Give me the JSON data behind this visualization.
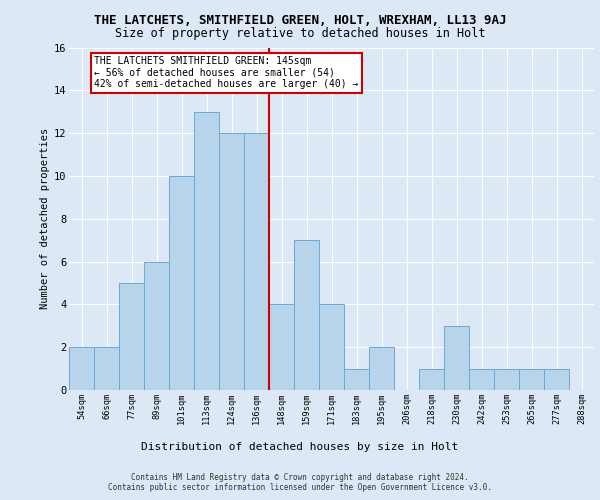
{
  "title": "THE LATCHETS, SMITHFIELD GREEN, HOLT, WREXHAM, LL13 9AJ",
  "subtitle": "Size of property relative to detached houses in Holt",
  "xlabel": "Distribution of detached houses by size in Holt",
  "ylabel": "Number of detached properties",
  "bin_labels": [
    "54sqm",
    "66sqm",
    "77sqm",
    "89sqm",
    "101sqm",
    "113sqm",
    "124sqm",
    "136sqm",
    "148sqm",
    "159sqm",
    "171sqm",
    "183sqm",
    "195sqm",
    "206sqm",
    "218sqm",
    "230sqm",
    "242sqm",
    "253sqm",
    "265sqm",
    "277sqm",
    "288sqm"
  ],
  "bar_values": [
    2,
    2,
    5,
    6,
    10,
    13,
    12,
    12,
    4,
    7,
    4,
    1,
    2,
    0,
    1,
    3,
    1,
    1,
    1,
    1,
    0
  ],
  "bar_color": "#b8d4ea",
  "bar_edge_color": "#6aaad4",
  "annotation_text": "THE LATCHETS SMITHFIELD GREEN: 145sqm\n← 56% of detached houses are smaller (54)\n42% of semi-detached houses are larger (40) →",
  "vline_position": 7.5,
  "vline_color": "#cc0000",
  "annotation_box_color": "#ffffff",
  "annotation_box_edge_color": "#cc0000",
  "footer_text": "Contains HM Land Registry data © Crown copyright and database right 2024.\nContains public sector information licensed under the Open Government Licence v3.0.",
  "ylim": [
    0,
    16
  ],
  "fig_background_color": "#dce8f5",
  "plot_background_color": "#dce8f5"
}
